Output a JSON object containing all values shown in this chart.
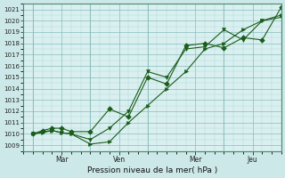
{
  "xlabel": "Pression niveau de la mer( hPa )",
  "bg_color": "#cce8e8",
  "plot_bg_color": "#daf0f0",
  "grid_color_major": "#88bbbb",
  "grid_color_minor": "#aad4d4",
  "line_color": "#1a5c1a",
  "ylim": [
    1008.5,
    1021.5
  ],
  "xlim": [
    -0.5,
    13.0
  ],
  "yticks": [
    1009,
    1010,
    1011,
    1012,
    1013,
    1014,
    1015,
    1016,
    1017,
    1018,
    1019,
    1020,
    1021
  ],
  "xtick_pos": [
    1.5,
    4.5,
    8.5,
    11.5
  ],
  "xtick_labels": [
    "Mar",
    "Ven",
    "Mer",
    "Jeu"
  ],
  "vlines": [
    0,
    3,
    6,
    10,
    13
  ],
  "series1": {
    "x": [
      0,
      0.5,
      1,
      1.5,
      2,
      3,
      4,
      5,
      6,
      7,
      8,
      9,
      10,
      11,
      12,
      13
    ],
    "y": [
      1010.0,
      1010.1,
      1010.3,
      1010.1,
      1010.0,
      1009.1,
      1009.3,
      1011.0,
      1012.5,
      1014.0,
      1015.5,
      1017.5,
      1018.0,
      1019.2,
      1020.0,
      1020.5
    ],
    "marker": ">"
  },
  "series2": {
    "x": [
      0,
      0.5,
      1,
      1.5,
      2,
      3,
      4,
      5,
      6,
      7,
      8,
      9,
      10,
      11,
      12,
      13
    ],
    "y": [
      1010.0,
      1010.2,
      1010.3,
      1010.1,
      1010.0,
      1009.5,
      1010.5,
      1012.0,
      1015.5,
      1015.0,
      1017.5,
      1017.7,
      1019.2,
      1018.3,
      1020.0,
      1020.3
    ],
    "marker": "v"
  },
  "series3": {
    "x": [
      0,
      0.5,
      1,
      1.5,
      2,
      3,
      4,
      5,
      6,
      7,
      8,
      9,
      10,
      11,
      12,
      13
    ],
    "y": [
      1010.0,
      1010.3,
      1010.5,
      1010.5,
      1010.2,
      1010.2,
      1012.2,
      1011.5,
      1015.0,
      1014.4,
      1017.8,
      1018.0,
      1017.6,
      1018.5,
      1018.3,
      1021.2
    ],
    "marker": "D"
  }
}
